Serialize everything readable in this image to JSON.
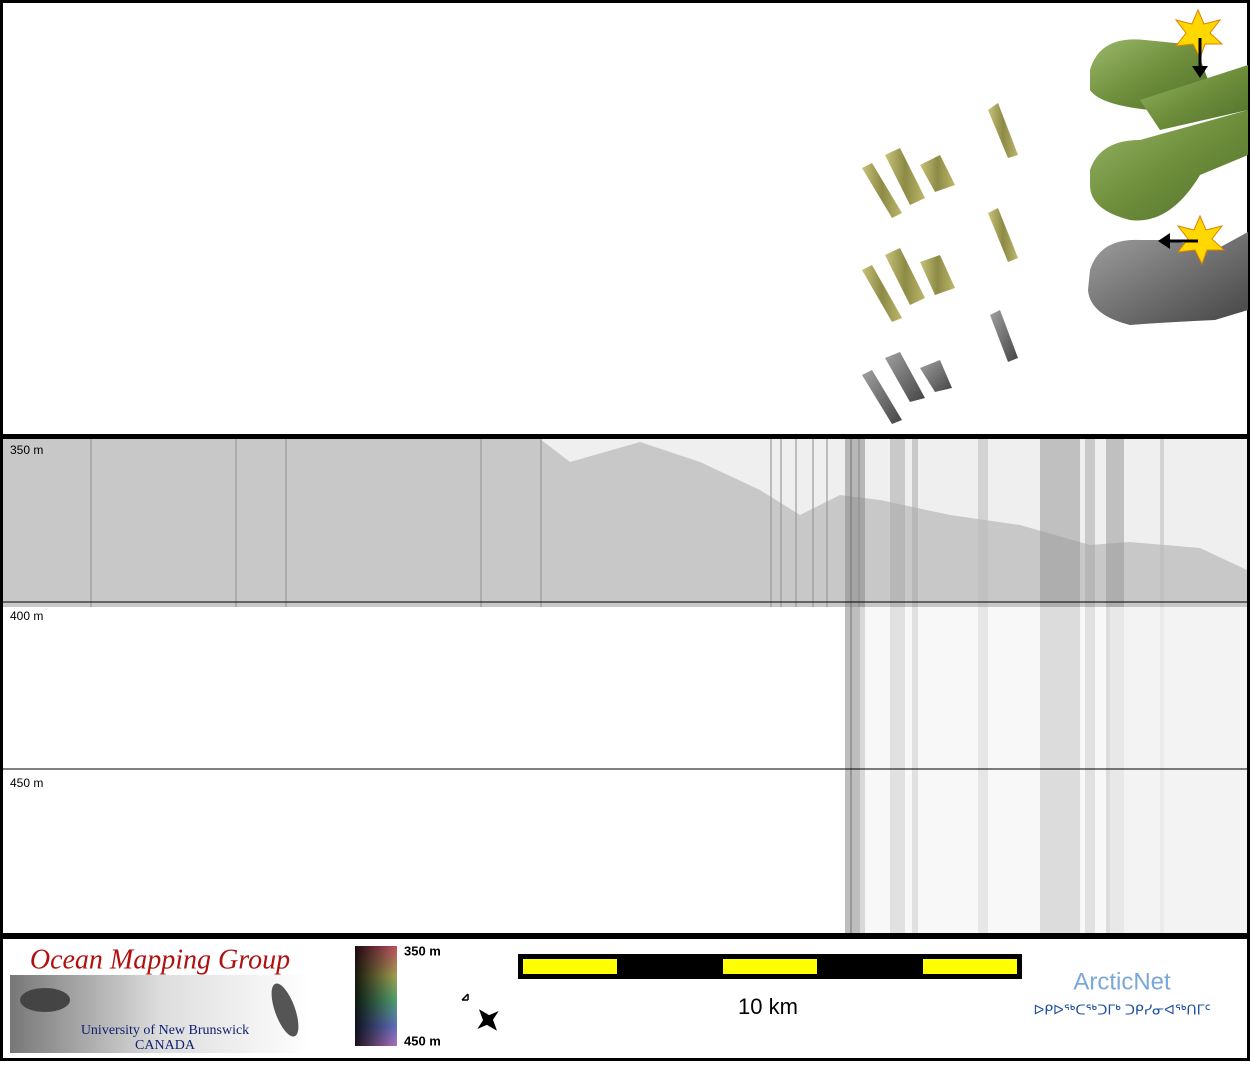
{
  "profile": {
    "depth_labels": [
      "350 m",
      "400 m",
      "450 m"
    ]
  },
  "logo": {
    "title": "Ocean Mapping Group",
    "subtitle": "University of New Brunswick",
    "country": "CANADA"
  },
  "colorbar": {
    "top_label": "350 m",
    "bottom_label": "450 m"
  },
  "scale_bar": {
    "label": "10 km"
  },
  "partner": {
    "name": "ArcticNet",
    "syllabics": "ᐅᑭᐅᖅᑕᖅᑐᒥᒃ ᑐᑭᓯᓂᐊᖅᑎᒥᑦ"
  }
}
